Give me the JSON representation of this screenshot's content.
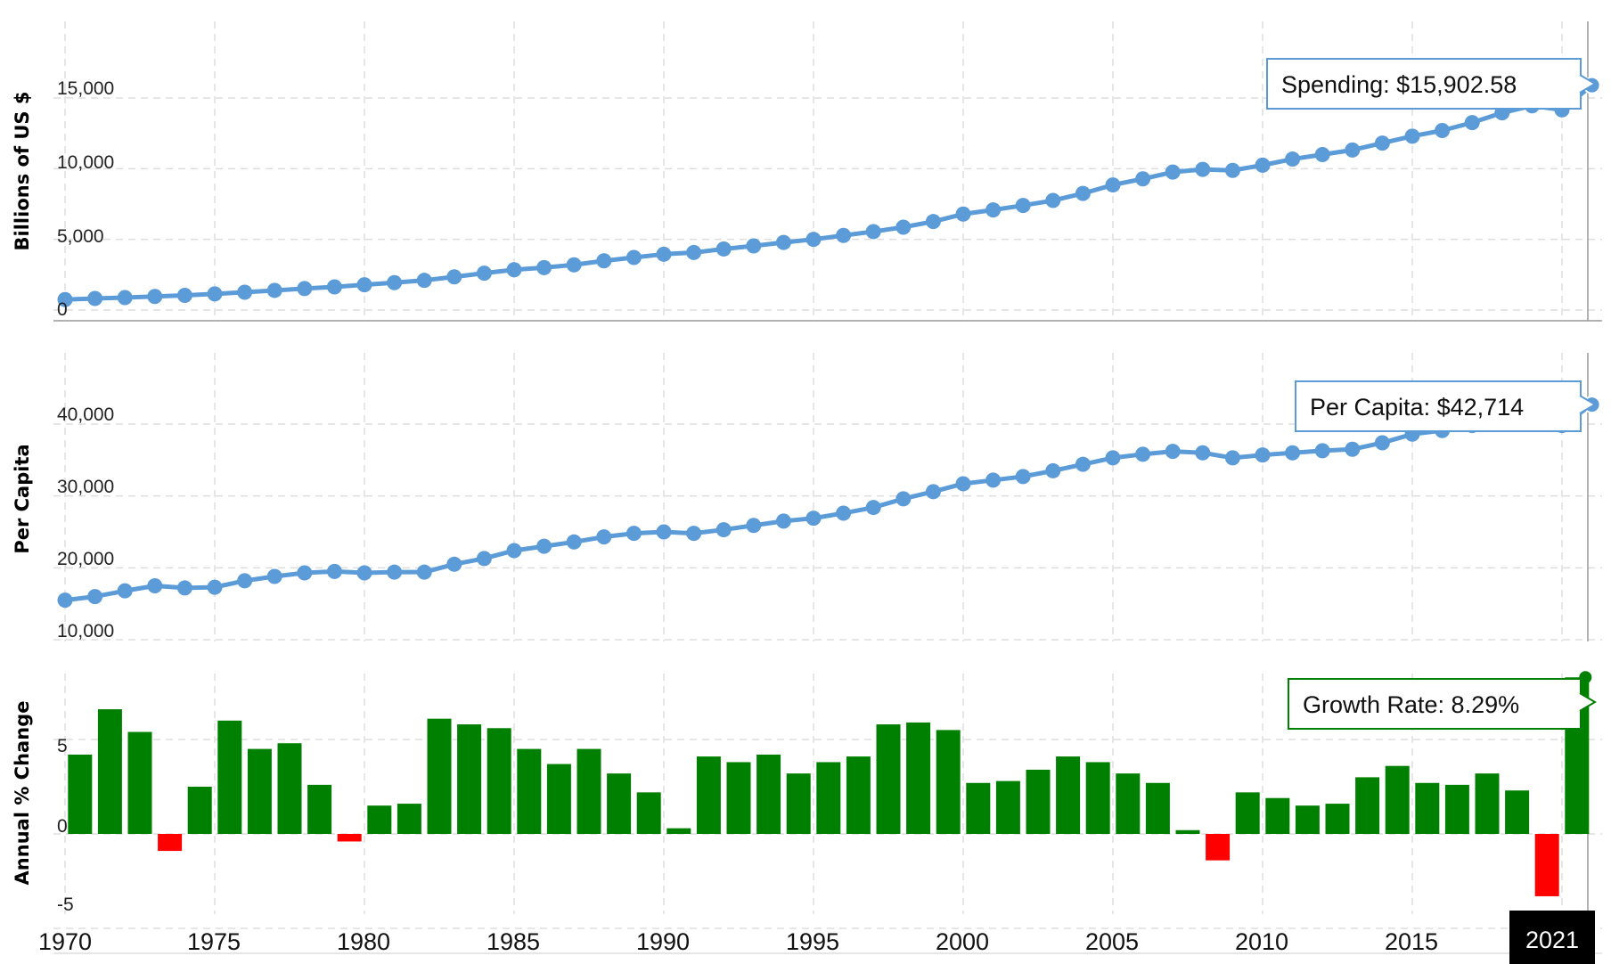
{
  "chart_data": [
    {
      "type": "line",
      "ylabel": "Billions of US $",
      "yticks": [
        "0",
        "5,000",
        "10,000",
        "15,000"
      ],
      "ylim": [
        -800,
        20000
      ],
      "grid": true,
      "series": [
        {
          "color": "#5b9bd8",
          "x": [
            1970,
            1971,
            1972,
            1973,
            1974,
            1975,
            1976,
            1977,
            1978,
            1979,
            1980,
            1981,
            1982,
            1983,
            1984,
            1985,
            1986,
            1987,
            1988,
            1989,
            1990,
            1991,
            1992,
            1993,
            1994,
            1995,
            1996,
            1997,
            1998,
            1999,
            2000,
            2001,
            2002,
            2003,
            2004,
            2005,
            2006,
            2007,
            2008,
            2009,
            2010,
            2011,
            2012,
            2013,
            2014,
            2015,
            2016,
            2017,
            2018,
            2019,
            2020,
            2021
          ],
          "values": [
            740,
            820,
            880,
            960,
            1040,
            1140,
            1260,
            1390,
            1520,
            1640,
            1790,
            1940,
            2100,
            2350,
            2610,
            2850,
            3000,
            3200,
            3480,
            3720,
            3950,
            4070,
            4320,
            4540,
            4780,
            5000,
            5280,
            5550,
            5860,
            6260,
            6790,
            7080,
            7400,
            7750,
            8250,
            8850,
            9280,
            9760,
            9950,
            9880,
            10250,
            10680,
            11000,
            11320,
            11810,
            12300,
            12700,
            13260,
            13950,
            14450,
            14160,
            15902.58
          ]
        }
      ],
      "tooltip": "Spending: $15,902.58"
    },
    {
      "type": "line",
      "ylabel": "Per Capita",
      "yticks": [
        "10,000",
        "20,000",
        "30,000",
        "40,000"
      ],
      "ylim": [
        8500,
        50000
      ],
      "grid": true,
      "series": [
        {
          "color": "#5b9bd8",
          "x": [
            1970,
            1971,
            1972,
            1973,
            1974,
            1975,
            1976,
            1977,
            1978,
            1979,
            1980,
            1981,
            1982,
            1983,
            1984,
            1985,
            1986,
            1987,
            1988,
            1989,
            1990,
            1991,
            1992,
            1993,
            1994,
            1995,
            1996,
            1997,
            1998,
            1999,
            2000,
            2001,
            2002,
            2003,
            2004,
            2005,
            2006,
            2007,
            2008,
            2009,
            2010,
            2011,
            2012,
            2013,
            2014,
            2015,
            2016,
            2017,
            2018,
            2019,
            2020,
            2021
          ],
          "values": [
            15500,
            16000,
            16800,
            17500,
            17200,
            17300,
            18200,
            18800,
            19300,
            19500,
            19300,
            19400,
            19400,
            20500,
            21300,
            22400,
            23000,
            23600,
            24300,
            24800,
            25000,
            24800,
            25300,
            25900,
            26500,
            26900,
            27600,
            28400,
            29600,
            30600,
            31700,
            32200,
            32700,
            33500,
            34400,
            35300,
            35800,
            36200,
            36000,
            35300,
            35700,
            36000,
            36300,
            36500,
            37400,
            38600,
            39100,
            39800,
            40500,
            40900,
            39800,
            42714
          ]
        }
      ],
      "tooltip": "Per Capita: $42,714"
    },
    {
      "type": "bar",
      "ylabel": "Annual % Change",
      "yticks": [
        "-5",
        "0",
        "5"
      ],
      "ylim": [
        -5.5,
        11
      ],
      "grid": true,
      "positive_color": "#008000",
      "negative_color": "#ff0000",
      "x": [
        1971,
        1972,
        1973,
        1974,
        1975,
        1976,
        1977,
        1978,
        1979,
        1980,
        1981,
        1982,
        1983,
        1984,
        1985,
        1986,
        1987,
        1988,
        1989,
        1990,
        1991,
        1992,
        1993,
        1994,
        1995,
        1996,
        1997,
        1998,
        1999,
        2000,
        2001,
        2002,
        2003,
        2004,
        2005,
        2006,
        2007,
        2008,
        2009,
        2010,
        2011,
        2012,
        2013,
        2014,
        2015,
        2016,
        2017,
        2018,
        2019,
        2020,
        2021
      ],
      "values": [
        4.2,
        6.6,
        5.4,
        -0.9,
        2.5,
        6.0,
        4.5,
        4.8,
        2.6,
        -0.4,
        1.5,
        1.6,
        6.1,
        5.8,
        5.6,
        4.5,
        3.7,
        4.5,
        3.2,
        2.2,
        0.3,
        4.1,
        3.8,
        4.2,
        3.2,
        3.8,
        4.1,
        5.8,
        5.9,
        5.5,
        2.7,
        2.8,
        3.4,
        4.1,
        3.8,
        3.2,
        2.7,
        0.2,
        -1.4,
        2.2,
        1.9,
        1.5,
        1.6,
        3.0,
        3.6,
        2.7,
        2.6,
        3.2,
        2.3,
        -3.3,
        8.29
      ],
      "tooltip": "Growth Rate: 8.29%"
    }
  ],
  "x_axis": {
    "ticks": [
      "1970",
      "1975",
      "1980",
      "1985",
      "1990",
      "1995",
      "2000",
      "2005",
      "2010",
      "2015"
    ],
    "current_label": "2021"
  }
}
